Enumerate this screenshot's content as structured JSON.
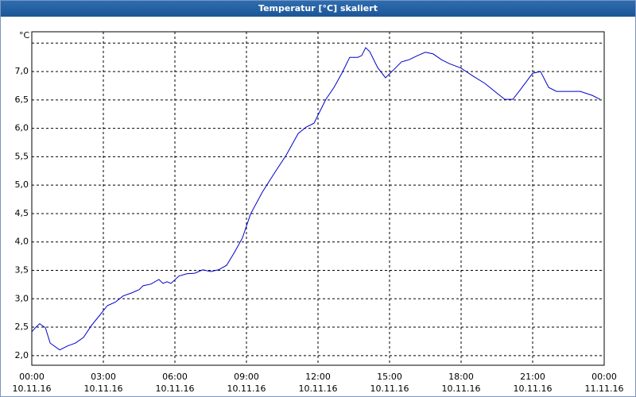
{
  "chart_data": {
    "type": "line",
    "title": "Temperatur [°C] skaliert",
    "y_unit": "°C",
    "x": [
      0,
      0.17,
      0.33,
      0.57,
      0.77,
      1.17,
      1.5,
      1.83,
      2.17,
      2.5,
      2.83,
      3.17,
      3.5,
      3.83,
      4.17,
      4.5,
      4.67,
      5,
      5.33,
      5.5,
      5.67,
      5.83,
      6.17,
      6.5,
      6.83,
      7.17,
      7.5,
      7.83,
      8.17,
      8.5,
      8.83,
      9.17,
      9.67,
      10.17,
      10.67,
      11.17,
      11.5,
      11.83,
      12.33,
      12.67,
      13,
      13.33,
      13.67,
      13.83,
      14,
      14.17,
      14.5,
      14.83,
      15.17,
      15.5,
      15.83,
      16.17,
      16.5,
      16.83,
      17.17,
      17.5,
      18,
      18.5,
      19,
      19.5,
      19.83,
      20.17,
      20.5,
      21,
      21.33,
      21.67,
      22,
      22.5,
      23,
      23.5,
      23.83
    ],
    "series": [
      {
        "color": "#0000cc",
        "values": [
          2.42,
          2.5,
          2.56,
          2.49,
          2.22,
          2.1,
          2.17,
          2.22,
          2.32,
          2.53,
          2.7,
          2.88,
          2.94,
          3.05,
          3.1,
          3.16,
          3.23,
          3.26,
          3.34,
          3.27,
          3.3,
          3.27,
          3.4,
          3.44,
          3.45,
          3.51,
          3.48,
          3.51,
          3.59,
          3.82,
          4.07,
          4.49,
          4.88,
          5.21,
          5.53,
          5.91,
          6.02,
          6.09,
          6.51,
          6.72,
          6.97,
          7.25,
          7.25,
          7.28,
          7.42,
          7.35,
          7.07,
          6.89,
          7.03,
          7.17,
          7.21,
          7.28,
          7.34,
          7.31,
          7.21,
          7.14,
          7.06,
          6.92,
          6.79,
          6.62,
          6.51,
          6.51,
          6.69,
          6.97,
          7.0,
          6.72,
          6.65,
          6.65,
          6.65,
          6.58,
          6.51
        ]
      }
    ],
    "xlim": [
      0,
      24
    ],
    "xticks": [
      {
        "value": 0,
        "label": "00:00",
        "date": "10.11.16"
      },
      {
        "value": 3,
        "label": "03:00",
        "date": "10.11.16"
      },
      {
        "value": 6,
        "label": "06:00",
        "date": "10.11.16"
      },
      {
        "value": 9,
        "label": "09:00",
        "date": "10.11.16"
      },
      {
        "value": 12,
        "label": "12:00",
        "date": "10.11.16"
      },
      {
        "value": 15,
        "label": "15:00",
        "date": "10.11.16"
      },
      {
        "value": 18,
        "label": "18:00",
        "date": "10.11.16"
      },
      {
        "value": 21,
        "label": "21:00",
        "date": "10.11.16"
      },
      {
        "value": 24,
        "label": "00:00",
        "date": "11.11.16"
      }
    ],
    "ylim": [
      1.83,
      7.7
    ],
    "yticks": [
      {
        "value": 2,
        "label": "2,0"
      },
      {
        "value": 2.5,
        "label": "2,5"
      },
      {
        "value": 3,
        "label": "3,0"
      },
      {
        "value": 3.5,
        "label": "3,5"
      },
      {
        "value": 4,
        "label": "4,0"
      },
      {
        "value": 4.5,
        "label": "4,5"
      },
      {
        "value": 5,
        "label": "5,0"
      },
      {
        "value": 5.5,
        "label": "5,5"
      },
      {
        "value": 6,
        "label": "6,0"
      },
      {
        "value": 6.5,
        "label": "6,5"
      },
      {
        "value": 7,
        "label": "7,0"
      },
      {
        "value": 7.5,
        "label": null
      }
    ],
    "grid": true
  }
}
